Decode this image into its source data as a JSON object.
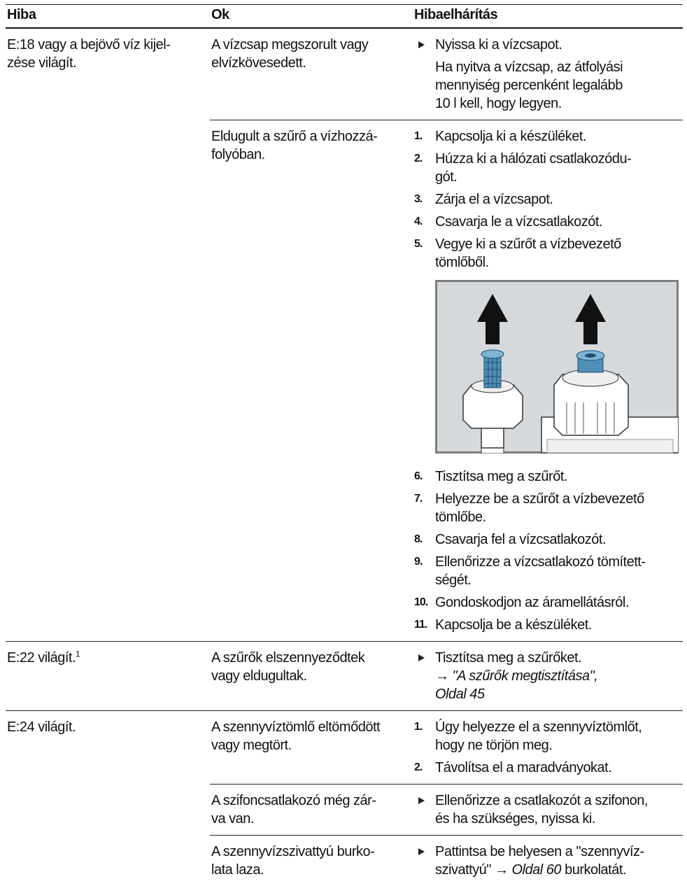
{
  "table": {
    "header": [
      "Hiba",
      "Ok",
      "Hibaelhárítás"
    ],
    "rows": [
      {
        "fault": "E:18 vagy a bejövő víz kijel-\nzése világít.",
        "causes": [
          {
            "cause": "A vízcsap megszorult vagy\nelvízkövesedett.",
            "action": {
              "text": "Nyissa ki a vízcsapot.",
              "note": "Ha nyitva a vízcsap, az átfolyási\nmennyiség percenként legalább\n10 l kell, hogy legyen."
            }
          },
          {
            "cause": "Eldugult a szűrő a vízhozzá-\nfolyóban.",
            "steps": [
              {
                "number": "1.",
                "text": "Kapcsolja ki a készüléket."
              },
              {
                "number": "2.",
                "text": "Húzza ki a hálózati csatlakozódu-\ngót."
              },
              {
                "number": "3.",
                "text": "Zárja el a vízcsapot."
              },
              {
                "number": "4.",
                "text": "Csavarja le a vízcsatlakozót."
              },
              {
                "number": "5.",
                "text": "Vegye ki a szűrőt a vízbevezető\ntömlőből."
              }
            ],
            "steps_continued": [
              {
                "number": "6.",
                "text": "Tisztítsa meg a szűrőt."
              },
              {
                "number": "7.",
                "text": "Helyezze be a szűrőt a vízbevezető\ntömlőbe."
              },
              {
                "number": "8.",
                "text": "Csavarja fel a vízcsatlakozót."
              },
              {
                "number": "9.",
                "text": "Ellenőrizze a vízcsatlakozó tömített-\nségét."
              },
              {
                "number": "10.",
                "text": "Gondoskodjon az áramellátásról."
              },
              {
                "number": "11.",
                "text": "Kapcsolja be a készüléket."
              }
            ]
          }
        ]
      },
      {
        "fault": "E:22 világít.",
        "footnote": "1",
        "causes": [
          {
            "cause": "A szűrők elszennyeződtek\nvagy eldugultak.",
            "action": {
              "text": "Tisztítsa meg a szűrőket.\n",
              "link": "→ \"A szűrők megtisztítása\",\nOldal 45"
            }
          }
        ]
      },
      {
        "fault": "E:24 világít.",
        "causes": [
          {
            "cause": "A szennyvíztömlő eltömődött\nvagy megtört.",
            "steps": [
              {
                "number": "1.",
                "text": "Úgy helyezze el a szennyvíztömlőt,\nhogy ne törjön meg."
              },
              {
                "number": "2.",
                "text": "Távolítsa el a maradványokat."
              }
            ]
          },
          {
            "cause": "A szifoncsatlakozó még zár-\nva van.",
            "action": {
              "text": "Ellenőrizze a csatlakozót a szifonon,\nés ha szükséges, nyissa ki."
            }
          },
          {
            "cause": "A szennyvízszivattyú burko-\nlata laza.",
            "action": {
              "text": "Pattintsa be helyesen a \"szennyvíz-\nszivattyú\" → ",
              "link": "Oldal 60",
              "text_after": " burkolatát."
            }
          }
        ]
      }
    ]
  }
}
